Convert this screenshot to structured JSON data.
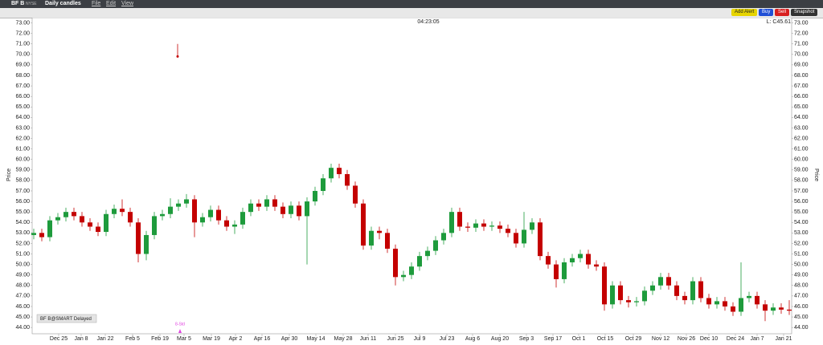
{
  "toolbar": {
    "symbol": "BF B",
    "exchange": "NYSE",
    "period": "Daily candles",
    "menus": [
      "File",
      "Edit",
      "View"
    ],
    "buttons": [
      "Add Alert",
      "Buy",
      "Sell",
      "Snapshot"
    ]
  },
  "chart_data": {
    "type": "candlestick",
    "clock": "04:23:05",
    "last_label": "L: C45.61",
    "y_axis_label": "Price",
    "source_label": "BF B@SMART Delayed",
    "up_color": "#1e9b3c",
    "down_color": "#c40000",
    "xlim": [
      -0.2,
      94.3
    ],
    "ylim": [
      43.4,
      73.5
    ],
    "xticks": [
      {
        "value": 3.1,
        "label": "Dec 25"
      },
      {
        "value": 5.9,
        "label": "Jan 8"
      },
      {
        "value": 8.9,
        "label": "Jan 22"
      },
      {
        "value": 12.3,
        "label": "Feb 5"
      },
      {
        "value": 15.7,
        "label": "Feb 19"
      },
      {
        "value": 18.7,
        "label": "Mar 5"
      },
      {
        "value": 22.1,
        "label": "Mar 19"
      },
      {
        "value": 25.1,
        "label": "Apr 2"
      },
      {
        "value": 28.4,
        "label": "Apr 16"
      },
      {
        "value": 31.8,
        "label": "Apr 30"
      },
      {
        "value": 35.1,
        "label": "May 14"
      },
      {
        "value": 38.5,
        "label": "May 28"
      },
      {
        "value": 41.6,
        "label": "Jun 11"
      },
      {
        "value": 45,
        "label": "Jun 25"
      },
      {
        "value": 48,
        "label": "Jul 9"
      },
      {
        "value": 51.4,
        "label": "Jul 23"
      },
      {
        "value": 54.6,
        "label": "Aug 6"
      },
      {
        "value": 58,
        "label": "Aug 20"
      },
      {
        "value": 61.3,
        "label": "Sep 3"
      },
      {
        "value": 64.6,
        "label": "Sep 17"
      },
      {
        "value": 67.8,
        "label": "Oct 1"
      },
      {
        "value": 71.1,
        "label": "Oct 15"
      },
      {
        "value": 74.6,
        "label": "Oct 29"
      },
      {
        "value": 78,
        "label": "Nov 12"
      },
      {
        "value": 81.2,
        "label": "Nov 26"
      },
      {
        "value": 84,
        "label": "Dec 10"
      },
      {
        "value": 87.3,
        "label": "Dec 24"
      },
      {
        "value": 90,
        "label": "Jan 7"
      },
      {
        "value": 93.3,
        "label": "Jan 21"
      }
    ],
    "yticks": [
      {
        "value": 44,
        "label": "44.00"
      },
      {
        "value": 45,
        "label": "45.00"
      },
      {
        "value": 46,
        "label": "46.00"
      },
      {
        "value": 47,
        "label": "47.00"
      },
      {
        "value": 48,
        "label": "48.00"
      },
      {
        "value": 49,
        "label": "49.00"
      },
      {
        "value": 50,
        "label": "50.00"
      },
      {
        "value": 51,
        "label": "51.00"
      },
      {
        "value": 52,
        "label": "52.00"
      },
      {
        "value": 53,
        "label": "53.00"
      },
      {
        "value": 54,
        "label": "54.00"
      },
      {
        "value": 55,
        "label": "55.00"
      },
      {
        "value": 56,
        "label": "56.00"
      },
      {
        "value": 57,
        "label": "57.00"
      },
      {
        "value": 58,
        "label": "58.00"
      },
      {
        "value": 59,
        "label": "59.00"
      },
      {
        "value": 60,
        "label": "60.00"
      },
      {
        "value": 61,
        "label": "61.00"
      },
      {
        "value": 62,
        "label": "62.00"
      },
      {
        "value": 63,
        "label": "63.00"
      },
      {
        "value": 64,
        "label": "64.00"
      },
      {
        "value": 65,
        "label": "65.00"
      },
      {
        "value": 66,
        "label": "66.00"
      },
      {
        "value": 67,
        "label": "67.00"
      },
      {
        "value": 68,
        "label": "68.00"
      },
      {
        "value": 69,
        "label": "69.00"
      },
      {
        "value": 70,
        "label": "70.00"
      },
      {
        "value": 71,
        "label": "71.00"
      },
      {
        "value": 72,
        "label": "72.00"
      },
      {
        "value": 73,
        "label": "73.00"
      }
    ],
    "x": [
      0,
      1,
      2,
      3,
      4,
      5,
      6,
      7,
      8,
      9,
      10,
      11,
      12,
      13,
      14,
      15,
      16,
      17,
      18,
      19,
      20,
      21,
      22,
      23,
      24,
      25,
      26,
      27,
      28,
      29,
      30,
      31,
      32,
      33,
      34,
      35,
      36,
      37,
      38,
      39,
      40,
      41,
      42,
      43,
      44,
      45,
      46,
      47,
      48,
      49,
      50,
      51,
      52,
      53,
      54,
      55,
      56,
      57,
      58,
      59,
      60,
      61,
      62,
      63,
      64,
      65,
      66,
      67,
      68,
      69,
      70,
      71,
      72,
      73,
      74,
      75,
      76,
      77,
      78,
      79,
      80,
      81,
      82,
      83,
      84,
      85,
      86,
      87,
      88,
      89,
      90,
      91,
      92,
      93,
      94
    ],
    "open": [
      52.8,
      53.0,
      52.6,
      54.2,
      54.5,
      55.0,
      54.6,
      54.0,
      53.6,
      53.1,
      54.8,
      55.3,
      55.0,
      54.0,
      51.0,
      52.8,
      54.6,
      54.8,
      55.5,
      55.8,
      56.2,
      54.0,
      54.5,
      55.2,
      54.2,
      53.6,
      53.8,
      55.0,
      55.8,
      55.5,
      56.2,
      55.5,
      54.8,
      55.6,
      54.6,
      56.0,
      57.0,
      58.2,
      59.2,
      58.6,
      57.5,
      55.8,
      51.8,
      53.2,
      53.0,
      51.5,
      48.8,
      49.0,
      49.8,
      50.8,
      51.3,
      52.3,
      53.0,
      55.0,
      53.6,
      53.5,
      53.9,
      53.6,
      53.7,
      53.4,
      53.0,
      52.0,
      53.3,
      54.0,
      50.8,
      50.0,
      48.6,
      50.2,
      50.6,
      51.0,
      50.0,
      49.8,
      46.2,
      48.0,
      46.6,
      46.4,
      46.5,
      47.5,
      48.0,
      48.8,
      48.0,
      47.0,
      46.6,
      48.4,
      46.8,
      46.2,
      46.5,
      46.0,
      45.5,
      46.8,
      47.0,
      46.2,
      45.6,
      45.9,
      45.7
    ],
    "high": [
      53.4,
      53.4,
      54.6,
      54.9,
      55.4,
      55.4,
      55.0,
      54.4,
      54.0,
      55.2,
      55.7,
      56.2,
      55.4,
      54.4,
      53.2,
      55.0,
      55.2,
      56.3,
      56.2,
      56.7,
      56.6,
      54.9,
      55.6,
      55.6,
      54.6,
      54.2,
      55.4,
      56.2,
      56.2,
      56.6,
      56.6,
      55.9,
      56.0,
      56.0,
      56.4,
      57.4,
      58.6,
      59.6,
      59.6,
      59.0,
      57.9,
      56.2,
      53.6,
      53.6,
      53.4,
      51.9,
      49.4,
      50.2,
      51.2,
      51.7,
      52.7,
      53.4,
      55.4,
      55.4,
      54.0,
      54.3,
      54.3,
      54.1,
      54.1,
      53.8,
      53.4,
      55.0,
      54.4,
      54.4,
      51.2,
      50.4,
      50.6,
      51.0,
      51.4,
      51.4,
      50.4,
      50.2,
      48.4,
      48.4,
      47.0,
      46.9,
      47.9,
      48.4,
      49.2,
      49.2,
      48.4,
      47.4,
      48.8,
      48.8,
      47.2,
      46.9,
      46.9,
      46.4,
      50.2,
      47.4,
      47.4,
      46.6,
      46.3,
      46.3,
      46.6
    ],
    "low": [
      52.4,
      52.2,
      52.2,
      53.8,
      54.1,
      54.2,
      53.6,
      53.2,
      52.7,
      52.7,
      54.4,
      54.6,
      53.6,
      50.2,
      50.4,
      52.4,
      54.2,
      54.4,
      55.1,
      55.4,
      52.6,
      53.6,
      54.1,
      53.8,
      53.2,
      52.9,
      53.4,
      54.6,
      55.1,
      55.1,
      55.1,
      54.4,
      54.4,
      54.2,
      50.0,
      55.6,
      56.6,
      57.8,
      58.2,
      57.1,
      55.4,
      51.4,
      51.4,
      52.4,
      51.1,
      48.0,
      48.4,
      48.6,
      49.4,
      50.4,
      50.9,
      51.9,
      52.6,
      53.2,
      53.1,
      53.1,
      53.2,
      53.2,
      53.0,
      52.6,
      51.6,
      51.6,
      52.9,
      50.4,
      49.6,
      47.8,
      48.2,
      49.8,
      50.2,
      49.6,
      49.4,
      45.6,
      45.8,
      46.2,
      45.9,
      46.0,
      46.1,
      47.1,
      47.6,
      47.6,
      46.6,
      46.2,
      46.2,
      46.4,
      45.8,
      45.8,
      45.6,
      45.1,
      45.1,
      46.4,
      45.8,
      44.6,
      45.2,
      45.3,
      45.2
    ],
    "close": [
      53.0,
      52.6,
      54.2,
      54.5,
      55.0,
      54.6,
      54.0,
      53.6,
      53.1,
      54.8,
      55.3,
      55.0,
      54.0,
      51.0,
      52.8,
      54.6,
      54.8,
      55.5,
      55.8,
      56.2,
      54.0,
      54.5,
      55.2,
      54.2,
      53.6,
      53.8,
      55.0,
      55.8,
      55.5,
      56.2,
      55.5,
      54.8,
      55.6,
      54.6,
      56.0,
      57.0,
      58.2,
      59.2,
      58.6,
      57.5,
      55.8,
      51.8,
      53.2,
      53.0,
      51.5,
      48.8,
      49.0,
      49.8,
      50.8,
      51.3,
      52.3,
      53.0,
      55.0,
      53.6,
      53.5,
      53.9,
      53.6,
      53.7,
      53.4,
      53.0,
      52.0,
      53.3,
      54.0,
      50.8,
      50.0,
      48.6,
      50.2,
      50.6,
      51.0,
      50.0,
      49.8,
      46.2,
      48.0,
      46.6,
      46.4,
      46.5,
      47.5,
      48.0,
      48.8,
      48.0,
      47.0,
      46.6,
      48.4,
      46.8,
      46.2,
      46.5,
      46.0,
      45.5,
      46.8,
      47.0,
      46.2,
      45.6,
      45.9,
      45.7,
      45.6
    ],
    "spike": {
      "x": 17.9,
      "high": 71.0,
      "low": 69.8
    },
    "event_marker": {
      "x": 18.2,
      "label": "8-Std"
    }
  }
}
